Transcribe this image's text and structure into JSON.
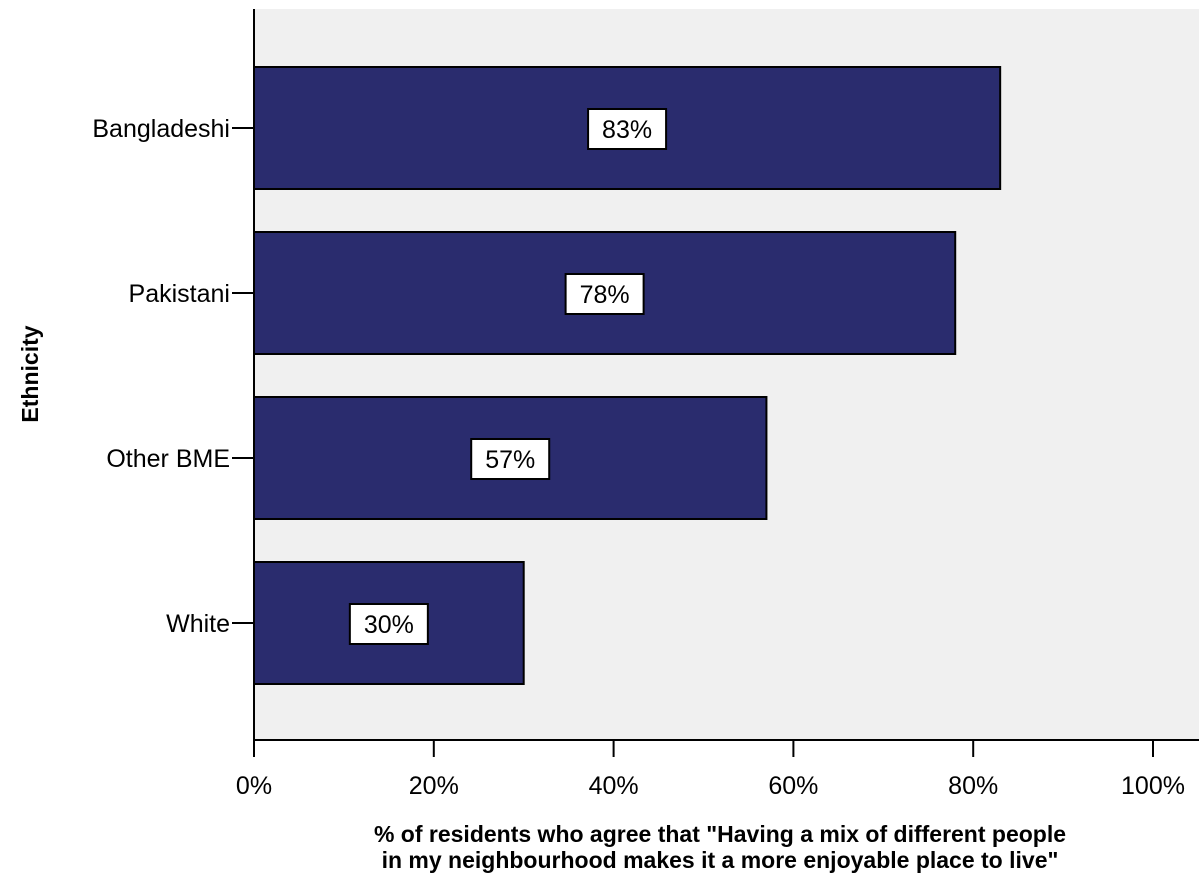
{
  "chart_data": {
    "type": "bar",
    "orientation": "horizontal",
    "categories": [
      "Bangladeshi",
      "Pakistani",
      "Other BME",
      "White"
    ],
    "values": [
      83,
      78,
      57,
      30
    ],
    "data_labels": [
      "83%",
      "78%",
      "57%",
      "30%"
    ],
    "title": "",
    "ylabel": "Ethnicity",
    "xlabel_lines": [
      "% of residents who agree that \"Having a mix of different people",
      "in my neighbourhood makes it a more enjoyable place to live\""
    ],
    "xlim": [
      0,
      100
    ],
    "x_ticks": [
      "0%",
      "20%",
      "40%",
      "60%",
      "80%",
      "100%"
    ],
    "grid": false,
    "colors": {
      "bar": "#2a2c6e",
      "plot_background": "#f0f0f0",
      "label_box": "#ffffff"
    }
  }
}
